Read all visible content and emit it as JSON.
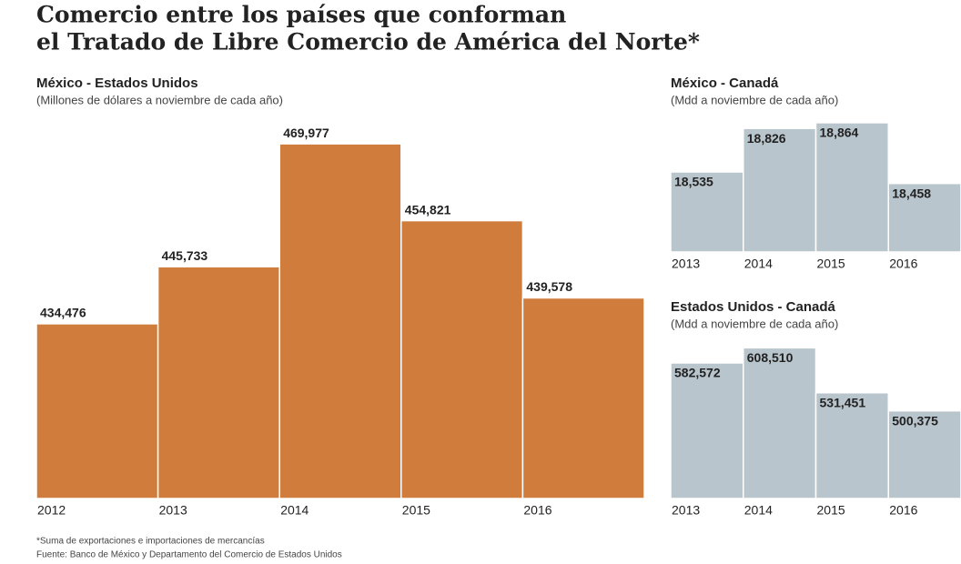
{
  "title": [
    "Comercio entre los países que conforman",
    "el Tratado de Libre Comercio de América del Norte*"
  ],
  "chart_data": [
    {
      "type": "bar",
      "title": "México - Estados Unidos",
      "subtitle": "(Millones de dólares a noviembre de cada año)",
      "categories": [
        "2012",
        "2013",
        "2014",
        "2015",
        "2016"
      ],
      "values": [
        434476,
        445733,
        469977,
        454821,
        439578
      ],
      "value_labels": [
        "434,476",
        "445,733",
        "469,977",
        "454,821",
        "439,578"
      ],
      "ylim": [
        400000,
        470000
      ],
      "color": "#cf7c3c"
    },
    {
      "type": "bar",
      "title": "México - Canadá",
      "subtitle": "(Mdd a noviembre de cada año)",
      "categories": [
        "2013",
        "2014",
        "2015",
        "2016"
      ],
      "values": [
        18535,
        18826,
        18864,
        18458
      ],
      "value_labels": [
        "18,535",
        "18,826",
        "18,864",
        "18,458"
      ],
      "ylim": [
        18000,
        18900
      ],
      "color": "#b9c5cd"
    },
    {
      "type": "bar",
      "title": "Estados Unidos - Canadá",
      "subtitle": "(Mdd a noviembre de cada año)",
      "categories": [
        "2013",
        "2014",
        "2015",
        "2016"
      ],
      "values": [
        582572,
        608510,
        531451,
        500375
      ],
      "value_labels": [
        "582,572",
        "608,510",
        "531,451",
        "500,375"
      ],
      "ylim": [
        350000,
        620000
      ],
      "color": "#b9c5cd"
    }
  ],
  "footnotes": [
    "*Suma de exportaciones e importaciones de mercancías",
    "Fuente: Banco de México y Departamento del Comercio de Estados Unidos"
  ]
}
